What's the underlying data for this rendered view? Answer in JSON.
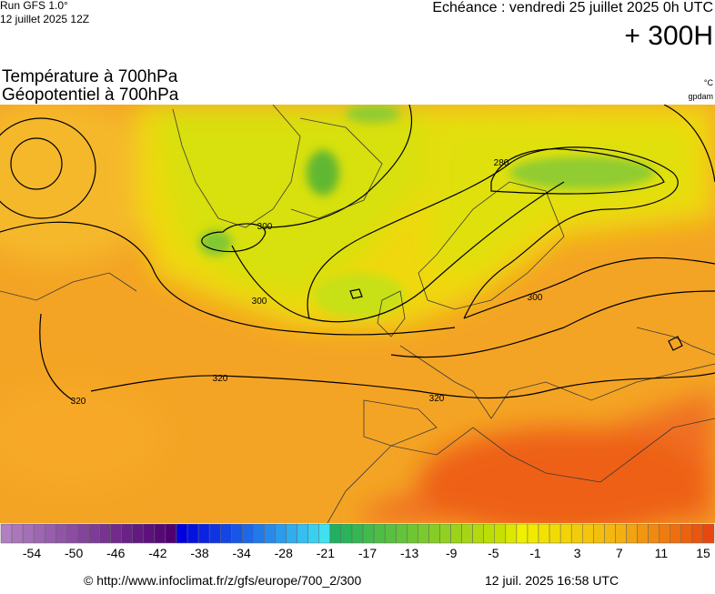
{
  "header": {
    "run": "Run GFS 1.0°",
    "date": "12 juillet 2025 12Z",
    "echeance": "Echéance : vendredi 25 juillet 2025 0h UTC",
    "lead": "+ 300H",
    "title1": "Température à 700hPa",
    "title2": "Géopotentiel à 700hPa",
    "unit1": "°C",
    "unit2": "gpdam"
  },
  "map": {
    "contour_labels": [
      "300",
      "300",
      "280",
      "300",
      "320",
      "320",
      "320"
    ]
  },
  "colorbar": {
    "labels": [
      "-54",
      "-50",
      "-46",
      "-42",
      "-38",
      "-34",
      "-28",
      "-21",
      "-17",
      "-13",
      "-9",
      "-5",
      "-1",
      "3",
      "7",
      "11",
      "15"
    ]
  },
  "footer": {
    "url": "© http://www.infoclimat.fr/z/gfs/europe/700_2/300",
    "timestamp": "12 juil. 2025 16:58 UTC"
  }
}
